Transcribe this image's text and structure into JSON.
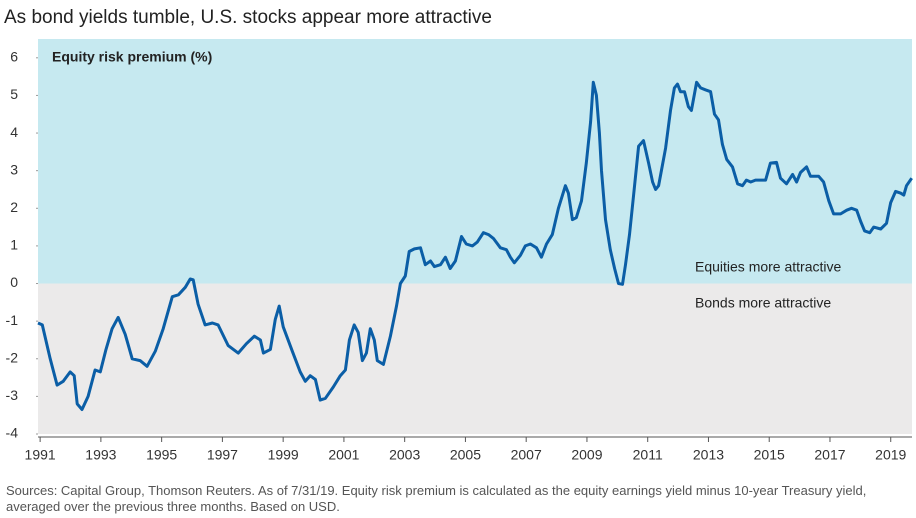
{
  "chart_data": {
    "type": "line",
    "title": "As bond yields tumble, U.S. stocks appear more attractive",
    "y_label": "Equity risk premium (%)",
    "annotations": [
      "Equities more attractive",
      "Bonds more attractive"
    ],
    "source": "Sources: Capital Group, Thomson Reuters. As of 7/31/19. Equity risk premium is calculated as the equity earnings yield minus 10-year Treasury yield, averaged over the previous three months. Based on USD.",
    "xlim": [
      1990.93,
      2019.7
    ],
    "xticks": [
      1991,
      1993,
      1995,
      1997,
      1999,
      2001,
      2003,
      2005,
      2007,
      2009,
      2011,
      2013,
      2015,
      2017,
      2019
    ],
    "ylim": [
      -4,
      6.5
    ],
    "yticks": [
      -4,
      -3,
      -2,
      -1,
      0,
      1,
      2,
      3,
      4,
      5,
      6
    ],
    "above_zero_color": "#c6e9f0",
    "below_zero_color": "#ebeaea",
    "series": [
      {
        "name": "Equity risk premium",
        "color": "#0b5ea6",
        "x": [
          1990.93,
          1991.07,
          1991.33,
          1991.56,
          1991.76,
          1991.99,
          1992.12,
          1992.22,
          1992.38,
          1992.58,
          1992.81,
          1992.98,
          1993.17,
          1993.37,
          1993.57,
          1993.8,
          1994.03,
          1994.29,
          1994.52,
          1994.79,
          1995.05,
          1995.35,
          1995.55,
          1995.78,
          1995.94,
          1996.04,
          1996.2,
          1996.43,
          1996.67,
          1996.86,
          1997.19,
          1997.52,
          1997.79,
          1998.05,
          1998.25,
          1998.35,
          1998.58,
          1998.74,
          1998.87,
          1999.0,
          1999.3,
          1999.56,
          1999.73,
          1999.89,
          2000.06,
          2000.22,
          2000.39,
          2000.65,
          2000.88,
          2001.05,
          2001.18,
          2001.34,
          2001.47,
          2001.61,
          2001.74,
          2001.87,
          2002.0,
          2002.1,
          2002.3,
          2002.53,
          2002.73,
          2002.86,
          2003.02,
          2003.15,
          2003.32,
          2003.52,
          2003.68,
          2003.85,
          2003.98,
          2004.18,
          2004.34,
          2004.5,
          2004.67,
          2004.87,
          2005.03,
          2005.23,
          2005.39,
          2005.59,
          2005.76,
          2005.92,
          2006.15,
          2006.35,
          2006.48,
          2006.61,
          2006.81,
          2006.97,
          2007.14,
          2007.34,
          2007.5,
          2007.67,
          2007.86,
          2008.06,
          2008.29,
          2008.39,
          2008.52,
          2008.65,
          2008.82,
          2008.98,
          2009.12,
          2009.21,
          2009.31,
          2009.41,
          2009.48,
          2009.61,
          2009.77,
          2009.91,
          2010.04,
          2010.17,
          2010.27,
          2010.4,
          2010.53,
          2010.7,
          2010.86,
          2011.03,
          2011.16,
          2011.26,
          2011.36,
          2011.45,
          2011.59,
          2011.75,
          2011.88,
          2011.98,
          2012.08,
          2012.21,
          2012.34,
          2012.44,
          2012.61,
          2012.74,
          2012.9,
          2013.07,
          2013.2,
          2013.33,
          2013.46,
          2013.6,
          2013.79,
          2013.96,
          2014.12,
          2014.25,
          2014.39,
          2014.55,
          2014.88,
          2015.04,
          2015.24,
          2015.37,
          2015.57,
          2015.77,
          2015.9,
          2016.03,
          2016.23,
          2016.36,
          2016.63,
          2016.79,
          2016.96,
          2017.12,
          2017.35,
          2017.55,
          2017.71,
          2017.88,
          2018.01,
          2018.14,
          2018.31,
          2018.44,
          2018.67,
          2018.86,
          2019.0,
          2019.16,
          2019.33,
          2019.43,
          2019.52,
          2019.69
        ],
        "values": [
          -1.05,
          -1.1,
          -2.0,
          -2.7,
          -2.6,
          -2.35,
          -2.45,
          -3.2,
          -3.35,
          -3.0,
          -2.3,
          -2.35,
          -1.75,
          -1.2,
          -0.9,
          -1.35,
          -2.0,
          -2.05,
          -2.2,
          -1.8,
          -1.2,
          -0.35,
          -0.3,
          -0.1,
          0.12,
          0.1,
          -0.55,
          -1.1,
          -1.05,
          -1.1,
          -1.65,
          -1.85,
          -1.6,
          -1.4,
          -1.5,
          -1.85,
          -1.75,
          -0.95,
          -0.6,
          -1.15,
          -1.8,
          -2.35,
          -2.6,
          -2.45,
          -2.55,
          -3.1,
          -3.05,
          -2.75,
          -2.45,
          -2.3,
          -1.5,
          -1.1,
          -1.3,
          -2.05,
          -1.85,
          -1.2,
          -1.5,
          -2.05,
          -2.15,
          -1.4,
          -0.6,
          0.0,
          0.2,
          0.85,
          0.92,
          0.95,
          0.5,
          0.6,
          0.45,
          0.5,
          0.7,
          0.4,
          0.6,
          1.25,
          1.05,
          1.0,
          1.1,
          1.35,
          1.3,
          1.2,
          0.95,
          0.9,
          0.7,
          0.55,
          0.75,
          1.0,
          1.05,
          0.95,
          0.7,
          1.05,
          1.3,
          2.0,
          2.6,
          2.4,
          1.7,
          1.75,
          2.2,
          3.2,
          4.3,
          5.35,
          5.0,
          4.0,
          3.0,
          1.7,
          0.9,
          0.4,
          0.0,
          -0.02,
          0.5,
          1.3,
          2.3,
          3.65,
          3.8,
          3.2,
          2.7,
          2.5,
          2.6,
          3.0,
          3.6,
          4.6,
          5.2,
          5.3,
          5.1,
          5.1,
          4.7,
          4.6,
          5.35,
          5.2,
          5.15,
          5.1,
          4.5,
          4.35,
          3.7,
          3.3,
          3.1,
          2.65,
          2.6,
          2.75,
          2.7,
          2.75,
          2.75,
          3.2,
          3.22,
          2.8,
          2.65,
          2.9,
          2.7,
          2.95,
          3.1,
          2.85,
          2.85,
          2.7,
          2.2,
          1.85,
          1.85,
          1.95,
          2.0,
          1.95,
          1.65,
          1.4,
          1.35,
          1.5,
          1.45,
          1.6,
          2.15,
          2.45,
          2.4,
          2.35,
          2.6,
          2.8
        ]
      }
    ]
  }
}
